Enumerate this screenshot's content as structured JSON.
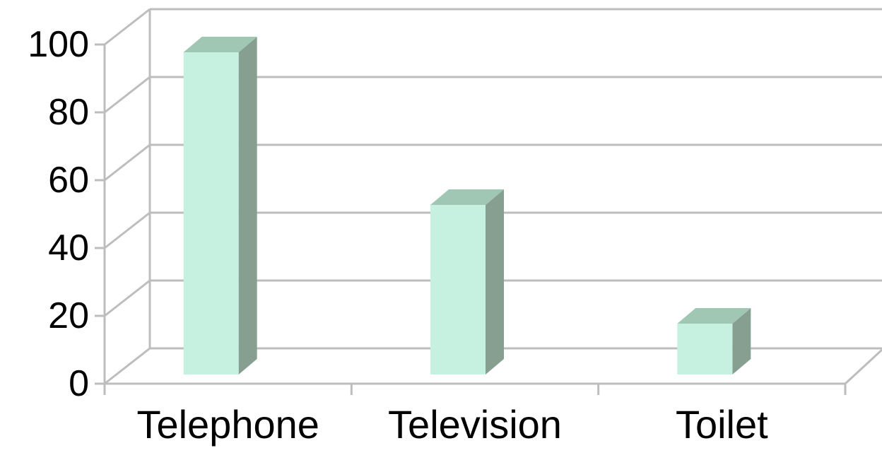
{
  "chart_data": {
    "type": "bar",
    "categories": [
      "Telephone",
      "Television",
      "Toilet"
    ],
    "values": [
      95,
      50,
      15
    ],
    "ylim": [
      0,
      100
    ],
    "yticks": [
      "0",
      "20",
      "40",
      "60",
      "80",
      "100"
    ],
    "grid": true,
    "legend": "none",
    "colors": {
      "bar_front": "#c6f0df",
      "bar_side": "#869f91",
      "bar_top": "#9fc7b4",
      "grid": "#bdbdbd",
      "text": "#000000"
    }
  }
}
